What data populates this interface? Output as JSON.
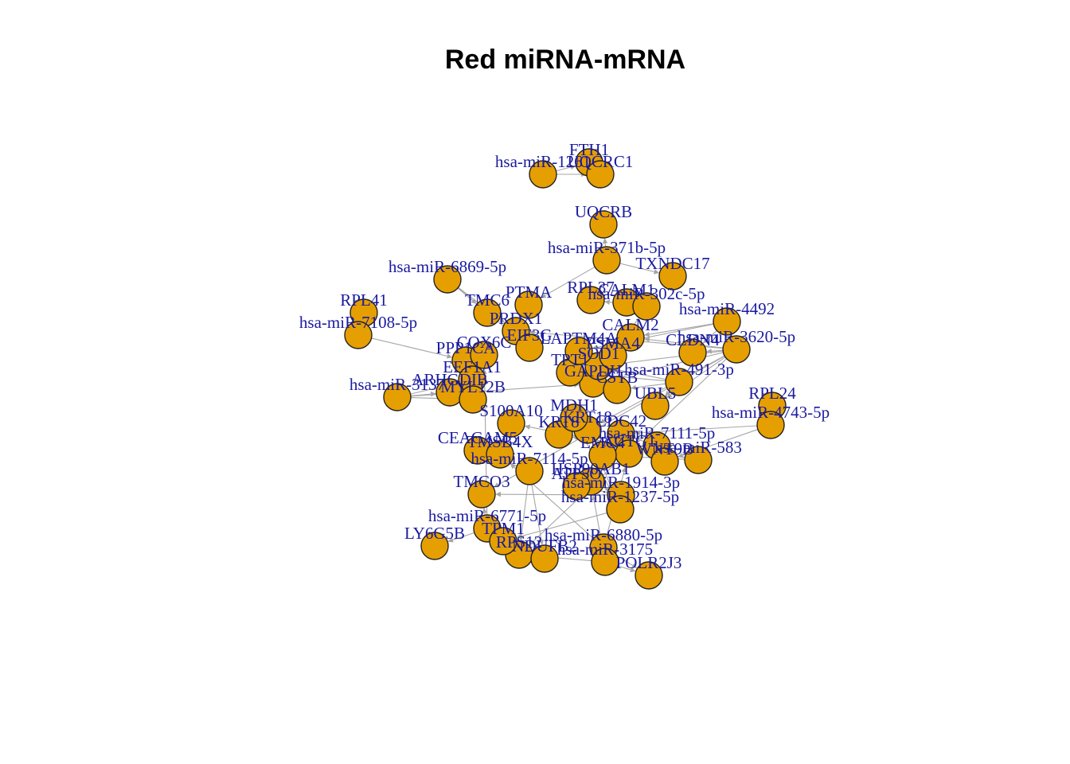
{
  "title": "Red miRNA-mRNA",
  "colors": {
    "node": "#E69F00",
    "label": "#1a1aa0",
    "edge": "#a6a6a6"
  },
  "hub": "hsa-miR-3620-5p",
  "nodes": [
    "FTH1",
    "hsa-miR-1261",
    "UQCRC1",
    "UQCRB",
    "hsa-miR-371b-5p",
    "TXNDC17",
    "hsa-miR-6869-5p",
    "RPL37",
    "CALM1",
    "hsa-miR-302c-5p",
    "RPL41",
    "hsa-miR-4492",
    "hsa-miR-7108-5p",
    "CALM2",
    "hsa-miR-3620-5p",
    "CLDN4",
    "PPP1CA",
    "COX6C",
    "EEF1A1",
    "hsa-miR-491-3p",
    "ARHGDIB",
    "hsa-miR-3137",
    "UBL5",
    "RPL24",
    "hsa-miR-4743-5p",
    "CEACAM5",
    "hsa-miR-7111-5p",
    "WNT9B",
    "hsa-miR-583",
    "hsa-miR-1914-3p",
    "TMCO3",
    "hsa-miR-1237-5p",
    "hsa-miR-6771-5p",
    "LY6G5B",
    "hsa-miR-6880-5p",
    "hsa-miR-3175",
    "POLR2J3",
    "TMC6",
    "TMSB4X",
    "PRDX1",
    "HSP90AB1",
    "GAPDH",
    "SOD1",
    "ATP5O",
    "PSMA4",
    "hsa-miR-7114-5p",
    "RPS12",
    "NDUFB2",
    "KRT8",
    "KRT18",
    "EIF3G",
    "CDC42",
    "TPT1",
    "ACTG1",
    "MYL12B",
    "LAPTM4A",
    "CSTB",
    "MDH1",
    "EMC4",
    "PTMA",
    "S100A10",
    "TPM1"
  ],
  "edges": [
    [
      "hsa-miR-3620-5p",
      "CALM2"
    ],
    [
      "hsa-miR-3620-5p",
      "CLDN4"
    ],
    [
      "hsa-miR-3620-5p",
      "SOD1"
    ],
    [
      "hsa-miR-3620-5p",
      "GAPDH"
    ],
    [
      "hsa-miR-3620-5p",
      "PRDX1"
    ],
    [
      "hsa-miR-3620-5p",
      "RPS12"
    ],
    [
      "hsa-miR-3620-5p",
      "TMCO3"
    ],
    [
      "hsa-miR-3620-5p",
      "UBL5"
    ],
    [
      "hsa-miR-3620-5p",
      "KRT18"
    ],
    [
      "hsa-miR-4492",
      "CALM2"
    ],
    [
      "hsa-miR-4492",
      "LAPTM4A"
    ],
    [
      "hsa-miR-4492",
      "CLDN4"
    ],
    [
      "hsa-miR-302c-5p",
      "RPL37"
    ],
    [
      "hsa-miR-302c-5p",
      "CALM1"
    ],
    [
      "hsa-miR-302c-5p",
      "PSMA4"
    ],
    [
      "hsa-miR-371b-5p",
      "UQCRB"
    ],
    [
      "hsa-miR-371b-5p",
      "TXNDC17"
    ],
    [
      "hsa-miR-371b-5p",
      "PTMA"
    ],
    [
      "hsa-miR-6869-5p",
      "TMC6"
    ],
    [
      "hsa-miR-6869-5p",
      "PRDX1"
    ],
    [
      "hsa-miR-6869-5p",
      "EIF3G"
    ],
    [
      "hsa-miR-7108-5p",
      "RPL41"
    ],
    [
      "hsa-miR-7108-5p",
      "PPP1CA"
    ],
    [
      "hsa-miR-3137",
      "ARHGDIB"
    ],
    [
      "hsa-miR-3137",
      "MYL12B"
    ],
    [
      "hsa-miR-3137",
      "GAPDH"
    ],
    [
      "hsa-miR-3137",
      "EEF1A1"
    ],
    [
      "hsa-miR-491-3p",
      "SOD1"
    ],
    [
      "hsa-miR-491-3p",
      "UBL5"
    ],
    [
      "hsa-miR-491-3p",
      "CSTB"
    ],
    [
      "hsa-miR-491-3p",
      "TPT1"
    ],
    [
      "hsa-miR-4743-5p",
      "RPL24"
    ],
    [
      "hsa-miR-4743-5p",
      "WNT9B"
    ],
    [
      "hsa-miR-4743-5p",
      "CDC42"
    ],
    [
      "hsa-miR-7111-5p",
      "WNT9B"
    ],
    [
      "hsa-miR-7111-5p",
      "ACTG1"
    ],
    [
      "hsa-miR-7111-5p",
      "CDC42"
    ],
    [
      "hsa-miR-583",
      "KRT8"
    ],
    [
      "hsa-miR-583",
      "EMC4"
    ],
    [
      "hsa-miR-583",
      "S100A10"
    ],
    [
      "hsa-miR-1914-3p",
      "TMCO3"
    ],
    [
      "hsa-miR-1914-3p",
      "ATP5O"
    ],
    [
      "hsa-miR-1914-3p",
      "HSP90AB1"
    ],
    [
      "hsa-miR-1237-5p",
      "TPM1"
    ],
    [
      "hsa-miR-1237-5p",
      "MDH1"
    ],
    [
      "hsa-miR-1237-5p",
      "KRT18"
    ],
    [
      "hsa-miR-7114-5p",
      "CEACAM5"
    ],
    [
      "hsa-miR-7114-5p",
      "RPS12"
    ],
    [
      "hsa-miR-7114-5p",
      "NDUFB2"
    ],
    [
      "hsa-miR-6771-5p",
      "LY6G5B"
    ],
    [
      "hsa-miR-6771-5p",
      "TMCO3"
    ],
    [
      "hsa-miR-6771-5p",
      "COX6C"
    ],
    [
      "hsa-miR-6880-5p",
      "POLR2J3"
    ],
    [
      "hsa-miR-6880-5p",
      "TMSB4X"
    ],
    [
      "hsa-miR-6880-5p",
      "ACTG1"
    ],
    [
      "hsa-miR-3175",
      "POLR2J3"
    ],
    [
      "hsa-miR-3175",
      "HSP90AB1"
    ],
    [
      "hsa-miR-3175",
      "RPS12"
    ],
    [
      "hsa-miR-1261",
      "FTH1"
    ],
    [
      "hsa-miR-1261",
      "UQCRC1"
    ]
  ]
}
